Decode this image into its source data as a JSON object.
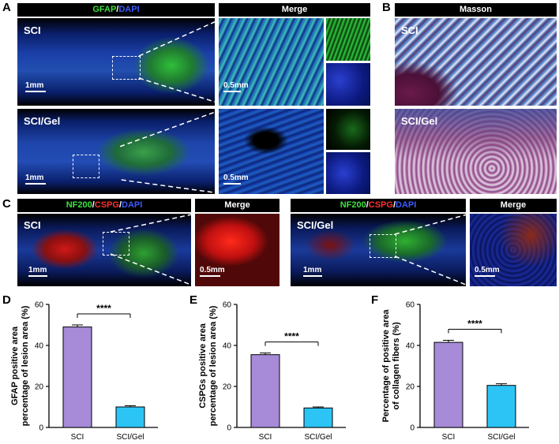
{
  "panels": {
    "a": "A",
    "b": "B",
    "c": "C",
    "d": "D",
    "e": "E",
    "f": "F"
  },
  "row1": {
    "gfap_header": {
      "gfap": "GFAP",
      "slash": "/",
      "dapi": "DAPI"
    },
    "merge_header": "Merge",
    "masson_header": "Masson",
    "sci_label": "SCI",
    "sci_gel_label": "SCI/Gel",
    "scale_1mm": "1mm",
    "scale_05mm": "0.5mm"
  },
  "row2": {
    "stain_header": {
      "nf200": "NF200",
      "slash1": "/",
      "cspg": "CSPG",
      "slash2": "/",
      "dapi": "DAPI"
    },
    "merge_header": "Merge",
    "sci_label": "SCI",
    "sci_gel_label": "SCI/Gel",
    "scale_1mm": "1mm",
    "scale_05mm": "0.5mm"
  },
  "colors": {
    "sci_bar": "#a78bd8",
    "sci_gel_bar": "#2cc4f5",
    "gfap_green": "#3ee23e",
    "dapi_blue": "#3a5bff",
    "cspg_red": "#ff3030"
  },
  "chart_data": [
    {
      "type": "bar",
      "panel": "D",
      "categories": [
        "SCI",
        "SCI/Gel"
      ],
      "values": [
        49,
        10
      ],
      "errors": [
        1,
        0.6
      ],
      "ylabel_line1": "GFAP positive area",
      "ylabel_line2": "percentage of lesion area (%)",
      "ylim": [
        0,
        60
      ],
      "yticks": [
        0,
        20,
        40,
        60
      ],
      "significance": "****"
    },
    {
      "type": "bar",
      "panel": "E",
      "categories": [
        "SCI",
        "SCI/Gel"
      ],
      "values": [
        35.5,
        9.5
      ],
      "errors": [
        0.8,
        0.5
      ],
      "ylabel_line1": "CSPGs positive area",
      "ylabel_line2": "percentage of lesion area (%)",
      "ylim": [
        0,
        60
      ],
      "yticks": [
        0,
        20,
        40,
        60
      ],
      "significance": "****"
    },
    {
      "type": "bar",
      "panel": "F",
      "categories": [
        "SCI",
        "SCI/Gel"
      ],
      "values": [
        41.5,
        20.5
      ],
      "errors": [
        1,
        0.8
      ],
      "ylabel_line1": "Percentage of positive area",
      "ylabel_line2": "of collagen fibers (%)",
      "ylim": [
        0,
        60
      ],
      "yticks": [
        0,
        20,
        40,
        60
      ],
      "significance": "****"
    }
  ]
}
